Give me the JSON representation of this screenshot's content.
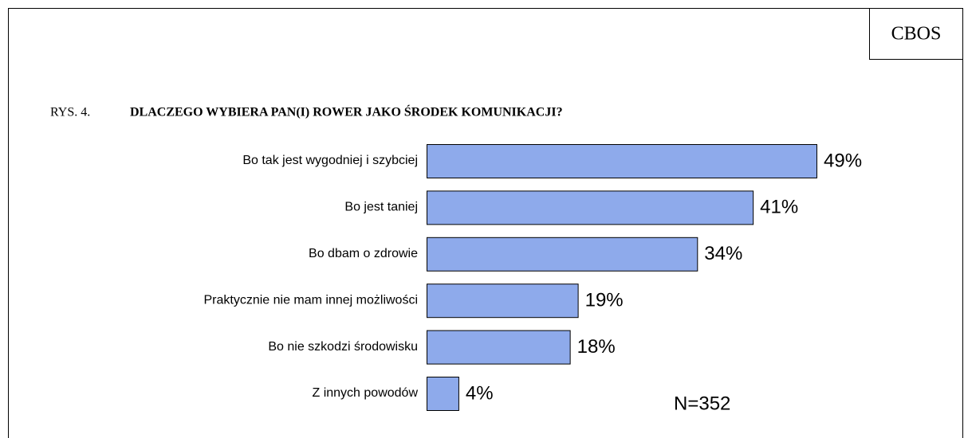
{
  "chart_data": {
    "type": "bar",
    "orientation": "horizontal",
    "source": "CBOS",
    "figure_label": "RYS. 4.",
    "title": "DLACZEGO WYBIERA PAN(I) ROWER JAKO ŚRODEK KOMUNIKACJI?",
    "categories": [
      "Bo tak jest wygodniej i szybciej",
      "Bo jest taniej",
      "Bo dbam o zdrowie",
      "Praktycznie nie mam innej możliwości",
      "Bo nie szkodzi środowisku",
      "Z innych powodów"
    ],
    "values": [
      49,
      41,
      34,
      19,
      18,
      4
    ],
    "value_labels": [
      "49%",
      "41%",
      "34%",
      "19%",
      "18%",
      "4%"
    ],
    "color": "#8eaaeb",
    "annotation": "N=352"
  }
}
